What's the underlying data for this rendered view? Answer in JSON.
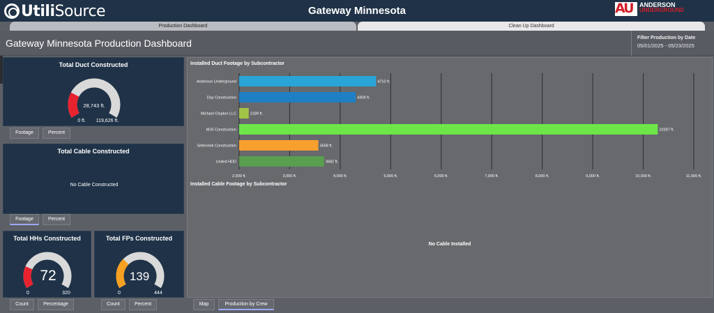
{
  "app": {
    "logo_text_bold": "Utili",
    "logo_text_light": "Source",
    "title": "Gateway Minnesota",
    "brand_line1": "ANDERSON",
    "brand_line2": "UNDERGROUND"
  },
  "tabs": [
    {
      "label": "Production Dashboard"
    },
    {
      "label": "Clean Up Dashboard"
    }
  ],
  "header": {
    "page_title": "Gateway Minnesota Production Dashboard",
    "filter_label": "Filter Production by Date",
    "filter_value": "05/01/2025 - 05/23/2025"
  },
  "duct_card": {
    "title": "Total Duct Constructed",
    "value": "28,743 ft.",
    "min_label": "0 ft.",
    "max_label": "119,626 ft.",
    "fraction": 0.24,
    "fill_color": "#e8222e",
    "buttons": {
      "footage": "Footage",
      "percent": "Percent"
    }
  },
  "cable_card": {
    "title": "Total Cable Constructed",
    "message": "No Cable Constructed",
    "buttons": {
      "footage": "Footage",
      "percent": "Percent"
    }
  },
  "hh_card": {
    "title": "Total HHs Constructed",
    "value": "72",
    "min_label": "0",
    "max_label": "320",
    "fraction": 0.225,
    "fill_color": "#e8222e",
    "buttons": {
      "count": "Count",
      "percentage": "Percentage"
    }
  },
  "fp_card": {
    "title": "Total FPs Constructed",
    "value": "139",
    "min_label": "0",
    "max_label": "444",
    "fraction": 0.313,
    "fill_color": "#f5a020",
    "buttons": {
      "count": "Count",
      "percent": "Percent"
    }
  },
  "chart_panel": {
    "duct_title": "Installed Duct Footage by Subcontractor",
    "cable_title": "Installed Cable Footage by Subcontractor",
    "cable_message": "No Cable Installed"
  },
  "chart_data": {
    "type": "bar",
    "orientation": "horizontal",
    "title": "Installed Duct Footage by Subcontractor",
    "categories": [
      "Anderson Underground",
      "Day Construction",
      "Michael Clopton LLC",
      "MJS Construction",
      "Sellenriek Construction",
      "United HDD"
    ],
    "values": [
      4710,
      4308,
      2189,
      10287,
      3568,
      3682
    ],
    "value_labels": [
      "4710 ft.",
      "4308 ft.",
      "2189 ft.",
      "10287 ft.",
      "3568 ft.",
      "3682 ft."
    ],
    "colors": [
      "#2aa5d8",
      "#1f7fc4",
      "#a3c547",
      "#6ee649",
      "#f8a02e",
      "#5a9e4f"
    ],
    "xlim": [
      2000,
      11000
    ],
    "x_ticks": [
      2000,
      3000,
      4000,
      5000,
      6000,
      7000,
      8000,
      9000,
      10000,
      11000
    ],
    "x_tick_labels": [
      "2,000 ft.",
      "3,000 ft.",
      "4,000 ft.",
      "5,000 ft.",
      "6,000 ft.",
      "7,000 ft.",
      "8,000 ft.",
      "9,000 ft.",
      "10,000 ft.",
      "11,000 ft."
    ],
    "grid": true
  },
  "bottom_buttons": {
    "map": "Map",
    "production_by_crew": "Production by Crew"
  }
}
